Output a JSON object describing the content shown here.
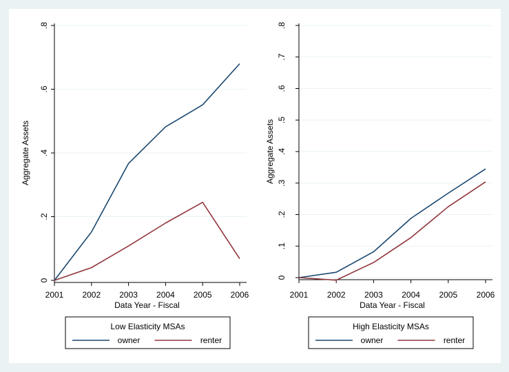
{
  "chart_data": [
    {
      "type": "line",
      "title": "",
      "xlabel": "Data Year - Fiscal",
      "ylabel": "Aggregate Assets",
      "x": [
        2001,
        2002,
        2003,
        2004,
        2005,
        2006
      ],
      "xticks": [
        "2001",
        "2002",
        "2003",
        "2004",
        "2005",
        "2006"
      ],
      "yticks": [
        {
          "value": 0,
          "label": "0"
        },
        {
          "value": 0.2,
          "label": ".2"
        },
        {
          "value": 0.4,
          "label": ".4"
        },
        {
          "value": 0.6,
          "label": ".6"
        },
        {
          "value": 0.8,
          "label": ".8"
        }
      ],
      "ylim": [
        0,
        0.8
      ],
      "grid": true,
      "legend": {
        "title": "Low Elasticity MSAs",
        "position": "bottom"
      },
      "series": [
        {
          "name": "owner",
          "color": "#1a476f",
          "values": [
            0.0,
            0.152,
            0.367,
            0.482,
            0.551,
            0.68
          ]
        },
        {
          "name": "renter",
          "color": "#90353b",
          "values": [
            0.0,
            0.04,
            0.108,
            0.18,
            0.245,
            0.068
          ]
        }
      ]
    },
    {
      "type": "line",
      "title": "",
      "xlabel": "Data Year - Fiscal",
      "ylabel": "Aggregate Assets",
      "x": [
        2001,
        2002,
        2003,
        2004,
        2005,
        2006
      ],
      "xticks": [
        "2001",
        "2002",
        "2003",
        "2004",
        "2005",
        "2006"
      ],
      "yticks": [
        {
          "value": 0,
          "label": "0"
        },
        {
          "value": 0.1,
          "label": ".1"
        },
        {
          "value": 0.2,
          "label": ".2"
        },
        {
          "value": 0.3,
          "label": ".3"
        },
        {
          "value": 0.4,
          "label": ".4"
        },
        {
          "value": 0.5,
          "label": ".5"
        },
        {
          "value": 0.6,
          "label": ".6"
        },
        {
          "value": 0.7,
          "label": ".7"
        },
        {
          "value": 0.8,
          "label": ".8"
        }
      ],
      "ylim": [
        0,
        0.8
      ],
      "grid": true,
      "legend": {
        "title": "High Elasticity MSAs",
        "position": "bottom"
      },
      "series": [
        {
          "name": "owner",
          "color": "#1a476f",
          "values": [
            0.0,
            0.017,
            0.082,
            0.188,
            0.268,
            0.345
          ]
        },
        {
          "name": "renter",
          "color": "#90353b",
          "values": [
            0.0,
            -0.008,
            0.048,
            0.127,
            0.225,
            0.304
          ]
        }
      ]
    }
  ]
}
